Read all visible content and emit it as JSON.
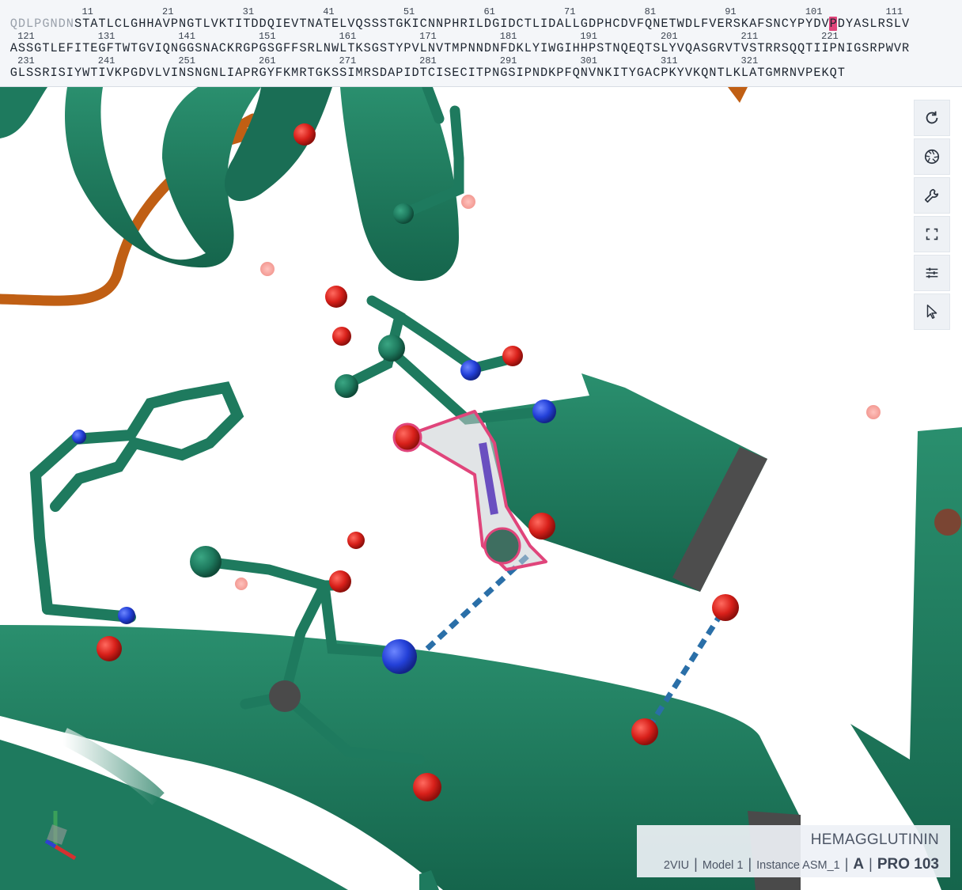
{
  "sequence": {
    "rows": [
      {
        "numbers": [
          "11",
          "21",
          "31",
          "41",
          "51",
          "61",
          "71",
          "81",
          "91",
          "101",
          "111"
        ],
        "prefix": "QDLPGNDN",
        "residues": "STATLCLGHHAVPNGTLVKTITDDQIEVTNATELVQSSSTGKICNNPHRILDGIDCTLIDALLGDPHCDVFQNETWDLFVERSKAFSNCYPYDVPDYASLRSLV",
        "selected_index": 94
      },
      {
        "numbers": [
          "121",
          "131",
          "141",
          "151",
          "161",
          "171",
          "181",
          "191",
          "201",
          "211",
          "221"
        ],
        "prefix": "",
        "residues": "ASSGTLEFITEGFTWTGVIQNGGSNACKRGPGSGFFSRLNWLTKSGSTYPVLNVTMPNNDNFDKLYIWGIHHPSTNQEQTSLYVQASGRVTVSTRRSQQTIIPNIGSRPWVR",
        "selected_index": -1
      },
      {
        "numbers": [
          "231",
          "241",
          "251",
          "261",
          "271",
          "281",
          "291",
          "301",
          "311",
          "321"
        ],
        "prefix": "",
        "residues": "GLSSRISIYWTIVKPGDVLVINSNGNLIAPRGYFKMRTGKSSIMRSDAPIDTCISECITPNGSIPNDKPFQNVNKITYGACPKYVKQNTLKLATGMRNVPEKQT",
        "selected_index": -1
      }
    ]
  },
  "toolbar": {
    "buttons": [
      {
        "name": "reset-view-button",
        "icon": "refresh-icon"
      },
      {
        "name": "screenshot-button",
        "icon": "camera-aperture-icon"
      },
      {
        "name": "settings-button",
        "icon": "wrench-icon"
      },
      {
        "name": "fullscreen-button",
        "icon": "expand-icon"
      },
      {
        "name": "controls-button",
        "icon": "sliders-icon"
      },
      {
        "name": "select-mode-button",
        "icon": "cursor-icon"
      }
    ]
  },
  "info": {
    "title": "HEMAGGLUTININ",
    "entry": "2VIU",
    "model": "Model 1",
    "instance": "Instance ASM_1",
    "chain": "A",
    "residue": "PRO 103"
  },
  "colors": {
    "protein": "#1e7a5e",
    "protein_dark": "#166048",
    "loop_orange": "#c05f14",
    "oxygen": "#d8201a",
    "nitrogen": "#2340d8",
    "hbond": "#2a6fa8",
    "highlight": "#e0457b",
    "selected_seq": "#e0457b"
  }
}
